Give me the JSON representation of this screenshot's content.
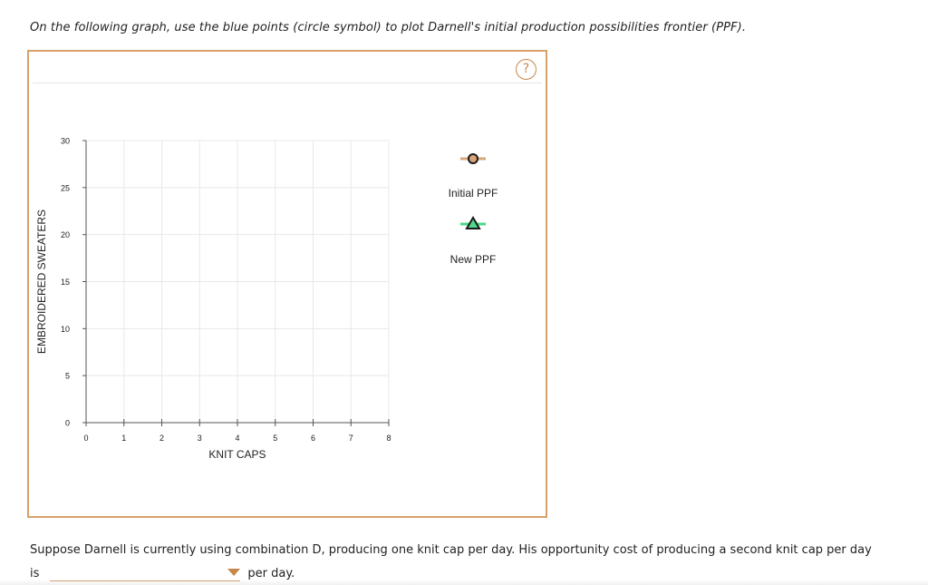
{
  "instruction": "On the following graph, use the blue points (circle symbol) to plot Darnell's initial production possibilities frontier (PPF).",
  "help_label": "?",
  "chart_data": {
    "type": "scatter",
    "xlabel": "KNIT CAPS",
    "ylabel": "EMBROIDERED SWEATERS",
    "xlim": [
      0,
      8
    ],
    "ylim": [
      0,
      30
    ],
    "x_ticks": [
      "0",
      "1",
      "2",
      "3",
      "4",
      "5",
      "6",
      "7",
      "8"
    ],
    "y_ticks": [
      "0",
      "5",
      "10",
      "15",
      "20",
      "25",
      "30"
    ],
    "grid": true,
    "series": [],
    "legend": [
      {
        "name": "Initial PPF",
        "symbol": "circle",
        "line_color": "#d9a57a",
        "marker_color": "#1a1a1a"
      },
      {
        "name": "New PPF",
        "symbol": "triangle",
        "line_color": "#4cd98a",
        "marker_color": "#1a1a1a"
      }
    ]
  },
  "question": {
    "text": "Suppose Darnell is currently using combination D, producing one knit cap per day. His opportunity cost of producing a second knit cap per day",
    "prefix": "is",
    "dropdown_value": "",
    "suffix": "per day."
  },
  "colors": {
    "frame_border": "#d9a06a",
    "accent": "#c8874b",
    "grid": "#e8e8e8"
  }
}
